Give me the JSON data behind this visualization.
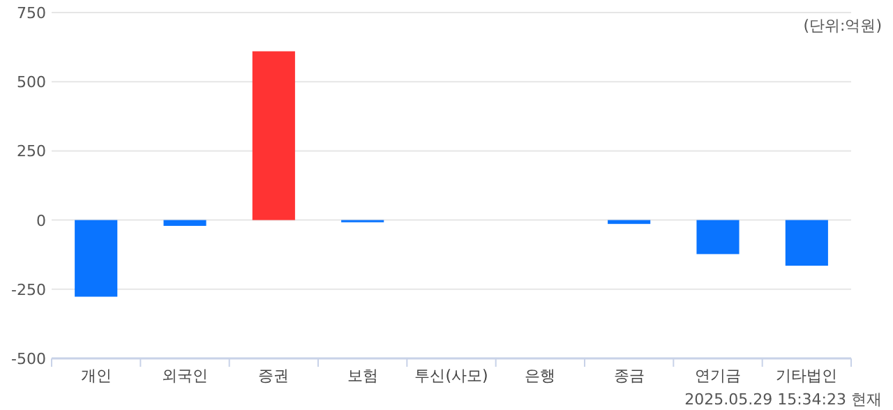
{
  "chart_data": {
    "type": "bar",
    "categories": [
      "개인",
      "외국인",
      "증권",
      "보험",
      "투신(사모)",
      "은행",
      "종금",
      "연기금",
      "기타법인"
    ],
    "values": [
      -277,
      -21,
      610,
      -8,
      0,
      0,
      -14,
      -123,
      -165
    ],
    "colors": [
      "#0a74ff",
      "#0a74ff",
      "#ff3333",
      "#0a74ff",
      "#0a74ff",
      "#0a74ff",
      "#0a74ff",
      "#0a74ff",
      "#0a74ff"
    ],
    "ylim": [
      -500,
      750
    ],
    "yticks": [
      -500,
      -250,
      0,
      250,
      500,
      750
    ],
    "grid": "y",
    "annotations": [
      "(단위:억원)",
      "2025.05.29 15:34:23 현재"
    ]
  }
}
